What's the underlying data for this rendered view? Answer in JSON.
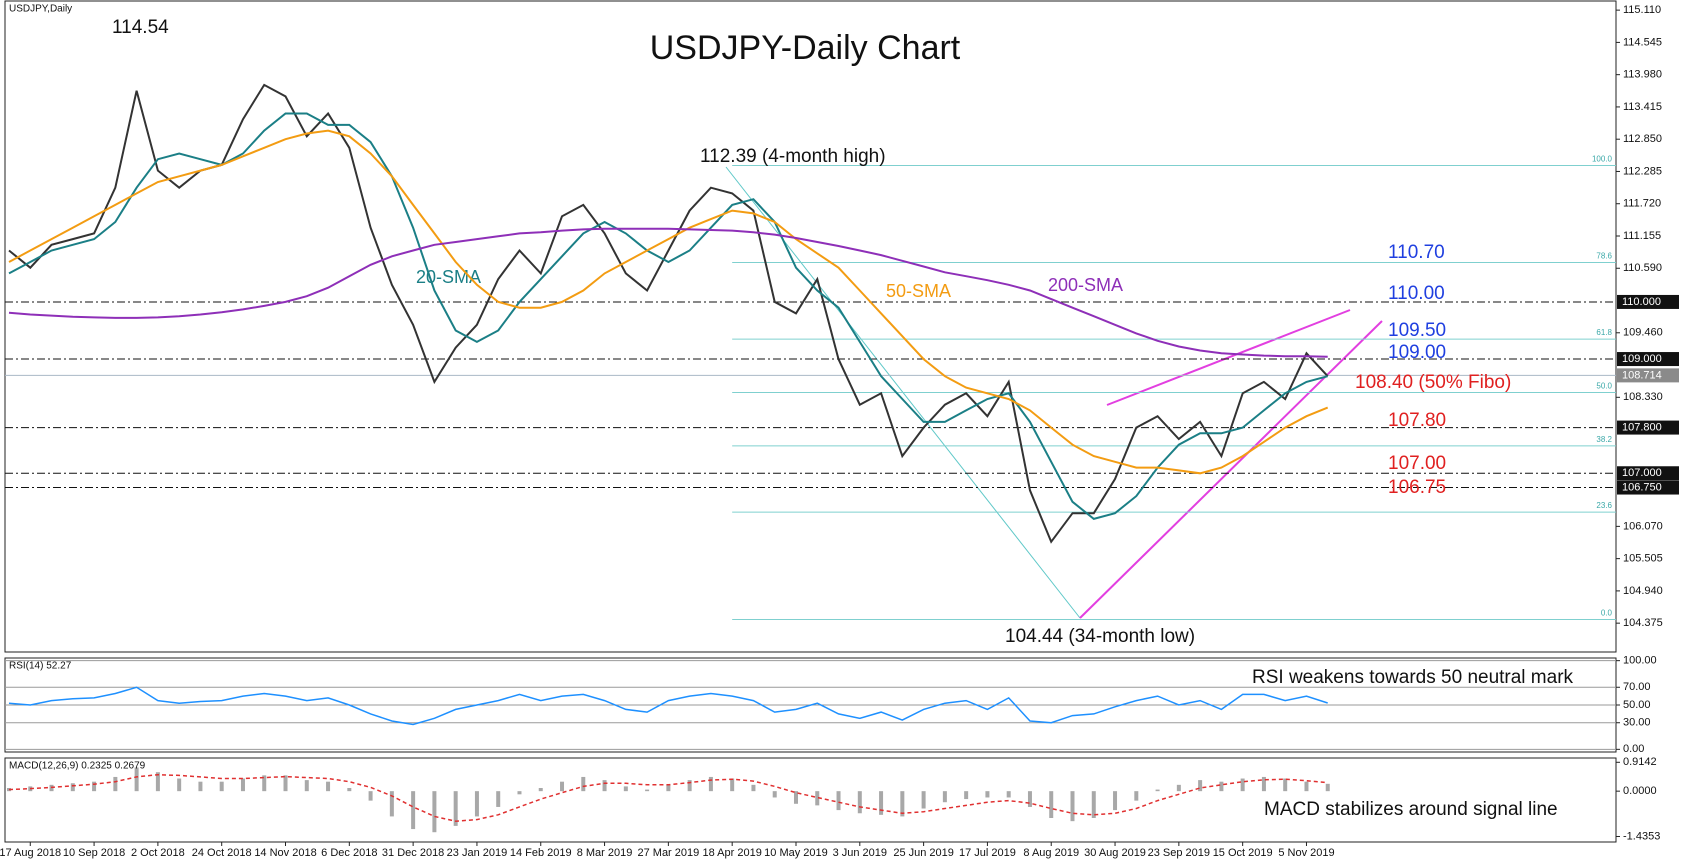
{
  "chart_data": [
    {
      "type": "line",
      "title": "USDJPY-Daily Chart",
      "subtitle": "USDJPY,Daily",
      "categories": [
        null,
        "17 Aug 2018",
        null,
        null,
        "10 Sep 2018",
        null,
        null,
        "2 Oct 2018",
        null,
        null,
        "24 Oct 2018",
        null,
        null,
        "14 Nov 2018",
        null,
        null,
        "6 Dec 2018",
        null,
        null,
        "31 Dec 2018",
        null,
        null,
        "23 Jan 2019",
        null,
        null,
        "14 Feb 2019",
        null,
        null,
        "8 Mar 2019",
        null,
        null,
        "27 Mar 2019",
        null,
        null,
        "18 Apr 2019",
        null,
        null,
        "10 May 2019",
        null,
        null,
        "3 Jun 2019",
        null,
        null,
        "25 Jun 2019",
        null,
        null,
        "17 Jul 2019",
        null,
        null,
        "8 Aug 2019",
        null,
        null,
        "30 Aug 2019",
        null,
        null,
        "23 Sep 2019",
        null,
        null,
        "15 Oct 2019",
        null,
        null,
        "5 Nov 2019",
        null
      ],
      "series": [
        {
          "color": "#333333",
          "values": [
            110.9,
            110.6,
            111.0,
            111.1,
            111.2,
            112.0,
            113.7,
            112.3,
            112.0,
            112.3,
            112.4,
            113.2,
            113.8,
            113.6,
            112.9,
            113.3,
            112.7,
            111.3,
            110.3,
            109.6,
            108.6,
            109.2,
            109.6,
            110.4,
            110.9,
            110.5,
            111.5,
            111.7,
            111.2,
            110.5,
            110.2,
            110.9,
            111.6,
            112.0,
            111.9,
            111.6,
            110.0,
            109.8,
            110.4,
            109.0,
            108.2,
            108.4,
            107.3,
            107.8,
            108.2,
            108.4,
            108.0,
            108.6,
            106.7,
            105.8,
            106.3,
            106.3,
            106.9,
            107.8,
            108.0,
            107.6,
            107.9,
            107.3,
            108.4,
            108.6,
            108.3,
            109.1,
            108.7
          ]
        },
        {
          "name": "20-SMA",
          "color": "#1b7f86",
          "values": [
            110.5,
            110.7,
            110.9,
            111.0,
            111.1,
            111.4,
            112.0,
            112.5,
            112.6,
            112.5,
            112.4,
            112.6,
            113.0,
            113.3,
            113.3,
            113.1,
            113.1,
            112.8,
            112.2,
            111.3,
            110.2,
            109.5,
            109.3,
            109.5,
            110.0,
            110.4,
            110.8,
            111.2,
            111.4,
            111.2,
            110.9,
            110.7,
            110.9,
            111.3,
            111.7,
            111.8,
            111.4,
            110.6,
            110.2,
            109.9,
            109.3,
            108.7,
            108.3,
            107.9,
            107.9,
            108.1,
            108.3,
            108.4,
            107.9,
            107.2,
            106.5,
            106.2,
            106.3,
            106.6,
            107.1,
            107.5,
            107.7,
            107.7,
            107.8,
            108.1,
            108.4,
            108.6,
            108.7
          ]
        },
        {
          "name": "50-SMA",
          "color": "#f39c12",
          "values": [
            110.7,
            110.9,
            111.1,
            111.3,
            111.5,
            111.7,
            111.9,
            112.1,
            112.2,
            112.3,
            112.4,
            112.55,
            112.7,
            112.85,
            112.95,
            113.0,
            112.9,
            112.6,
            112.2,
            111.7,
            111.2,
            110.7,
            110.3,
            110.0,
            109.9,
            109.9,
            110.0,
            110.2,
            110.5,
            110.7,
            110.9,
            111.1,
            111.3,
            111.45,
            111.6,
            111.55,
            111.4,
            111.1,
            110.85,
            110.6,
            110.2,
            109.8,
            109.4,
            109.0,
            108.7,
            108.5,
            108.4,
            108.3,
            108.1,
            107.8,
            107.5,
            107.3,
            107.2,
            107.1,
            107.1,
            107.05,
            107.0,
            107.1,
            107.3,
            107.55,
            107.8,
            108.0,
            108.15
          ]
        },
        {
          "name": "200-SMA",
          "color": "#8e2fb8",
          "values": [
            109.81,
            109.78,
            109.76,
            109.74,
            109.73,
            109.72,
            109.72,
            109.73,
            109.75,
            109.78,
            109.82,
            109.87,
            109.93,
            110.0,
            110.1,
            110.25,
            110.45,
            110.65,
            110.8,
            110.9,
            111.0,
            111.05,
            111.1,
            111.15,
            111.2,
            111.22,
            111.25,
            111.27,
            111.28,
            111.28,
            111.28,
            111.28,
            111.27,
            111.26,
            111.25,
            111.22,
            111.18,
            111.12,
            111.05,
            110.98,
            110.9,
            110.82,
            110.72,
            110.62,
            110.52,
            110.45,
            110.38,
            110.3,
            110.2,
            110.05,
            109.9,
            109.75,
            109.6,
            109.45,
            109.32,
            109.22,
            109.15,
            109.1,
            109.08,
            109.06,
            109.05,
            109.05,
            109.04
          ]
        }
      ],
      "ylim": [
        103.87,
        115.27
      ],
      "yticks": [
        {
          "value": 115.11,
          "label": "115.110"
        },
        {
          "value": 114.545,
          "label": "114.545"
        },
        {
          "value": 113.98,
          "label": "113.980"
        },
        {
          "value": 113.415,
          "label": "113.415"
        },
        {
          "value": 112.85,
          "label": "112.850"
        },
        {
          "value": 112.285,
          "label": "112.285"
        },
        {
          "value": 111.72,
          "label": "111.720"
        },
        {
          "value": 111.155,
          "label": "111.155"
        },
        {
          "value": 110.59,
          "label": "110.590"
        },
        {
          "value": 109.46,
          "label": "109.460"
        },
        {
          "value": 108.33,
          "label": "108.330"
        },
        {
          "value": 106.07,
          "label": "106.070"
        },
        {
          "value": 105.505,
          "label": "105.505"
        },
        {
          "value": 104.94,
          "label": "104.940"
        },
        {
          "value": 104.375,
          "label": "104.375"
        }
      ],
      "levels": [
        {
          "value": 110,
          "label": "110.000"
        },
        {
          "value": 109,
          "label": "109.000"
        },
        {
          "value": 107.8,
          "label": "107.800"
        },
        {
          "value": 107,
          "label": "107.000"
        },
        {
          "value": 106.75,
          "label": "106.750"
        }
      ],
      "current": {
        "value": 108.714,
        "label": "108.714"
      },
      "fib": [
        {
          "level": "100.0",
          "price": 112.39
        },
        {
          "level": "78.6",
          "price": 110.69
        },
        {
          "level": "61.8",
          "price": 109.35
        },
        {
          "level": "50.0",
          "price": 108.415
        },
        {
          "level": "38.2",
          "price": 107.48
        },
        {
          "level": "23.6",
          "price": 106.32
        },
        {
          "level": "0.0",
          "price": 104.44
        }
      ],
      "annotations": [
        {
          "text": "114.54",
          "color": "#111111"
        },
        {
          "text": "112.39 (4-month high)",
          "color": "#111111"
        },
        {
          "text": "110.70",
          "color": "#1f3fe0"
        },
        {
          "text": "110.00",
          "color": "#1f3fe0"
        },
        {
          "text": "109.50",
          "color": "#1f3fe0"
        },
        {
          "text": "109.00",
          "color": "#1f3fe0"
        },
        {
          "text": "108.40 (50% Fibo)",
          "color": "#e02020"
        },
        {
          "text": "107.80",
          "color": "#e02020"
        },
        {
          "text": "107.00",
          "color": "#e02020"
        },
        {
          "text": "106.75",
          "color": "#e02020"
        },
        {
          "text": "104.44 (34-month low)",
          "color": "#111111"
        }
      ]
    },
    {
      "type": "line",
      "title": "RSI(14) 52.27",
      "annotation": "RSI weakens towards 50 neutral mark",
      "grid": true,
      "series": [
        {
          "color": "#1e90ff",
          "values": [
            52,
            50,
            55,
            57,
            58,
            63,
            70,
            55,
            52,
            54,
            55,
            60,
            63,
            60,
            55,
            58,
            50,
            40,
            32,
            28,
            35,
            45,
            50,
            55,
            62,
            55,
            60,
            62,
            55,
            45,
            42,
            55,
            60,
            63,
            60,
            55,
            42,
            45,
            52,
            40,
            35,
            42,
            33,
            45,
            52,
            55,
            45,
            58,
            32,
            30,
            38,
            40,
            48,
            55,
            60,
            50,
            55,
            45,
            62,
            62,
            55,
            60,
            52.27
          ]
        }
      ],
      "ylim": [
        -3,
        103
      ],
      "yticks": [
        {
          "value": 100,
          "label": "100.00"
        },
        {
          "value": 70,
          "label": "70.00"
        },
        {
          "value": 50,
          "label": "50.00"
        },
        {
          "value": 30,
          "label": "30.00"
        },
        {
          "value": 0,
          "label": "0.00"
        }
      ]
    },
    {
      "type": "bar",
      "title": "MACD(12,26,9) 0.2325 0.2679",
      "annotation": "MACD stabilizes around signal line",
      "series": [
        {
          "color": "#a8a8a8",
          "values": [
            0.1,
            0.15,
            0.2,
            0.25,
            0.3,
            0.45,
            0.75,
            0.6,
            0.4,
            0.3,
            0.3,
            0.4,
            0.5,
            0.5,
            0.35,
            0.3,
            0.1,
            -0.3,
            -0.8,
            -1.2,
            -1.3,
            -1.1,
            -0.8,
            -0.5,
            -0.1,
            0.1,
            0.3,
            0.45,
            0.35,
            0.15,
            0.05,
            0.2,
            0.35,
            0.45,
            0.4,
            0.2,
            -0.2,
            -0.4,
            -0.45,
            -0.6,
            -0.7,
            -0.75,
            -0.8,
            -0.55,
            -0.35,
            -0.25,
            -0.2,
            -0.2,
            -0.5,
            -0.85,
            -0.95,
            -0.85,
            -0.6,
            -0.3,
            0.05,
            0.2,
            0.35,
            0.3,
            0.4,
            0.45,
            0.4,
            0.3,
            0.2325
          ]
        },
        {
          "type": "line",
          "dashed": true,
          "color": "#e03030",
          "values": [
            0.05,
            0.08,
            0.12,
            0.17,
            0.22,
            0.3,
            0.45,
            0.52,
            0.5,
            0.45,
            0.4,
            0.4,
            0.43,
            0.46,
            0.43,
            0.4,
            0.3,
            0.12,
            -0.15,
            -0.5,
            -0.8,
            -0.95,
            -0.9,
            -0.75,
            -0.5,
            -0.25,
            -0.05,
            0.15,
            0.25,
            0.25,
            0.2,
            0.2,
            0.27,
            0.35,
            0.38,
            0.32,
            0.15,
            -0.05,
            -0.2,
            -0.35,
            -0.5,
            -0.6,
            -0.7,
            -0.65,
            -0.55,
            -0.45,
            -0.35,
            -0.3,
            -0.38,
            -0.55,
            -0.7,
            -0.75,
            -0.7,
            -0.55,
            -0.3,
            -0.1,
            0.1,
            0.2,
            0.3,
            0.36,
            0.38,
            0.33,
            0.2679
          ]
        }
      ],
      "ylim": [
        -1.61,
        1.05
      ],
      "yticks": [
        {
          "value": 0.9142,
          "label": "0.9142"
        },
        {
          "value": 0,
          "label": "0.0000"
        },
        {
          "value": -1.4353,
          "label": "-1.4353"
        }
      ]
    }
  ]
}
